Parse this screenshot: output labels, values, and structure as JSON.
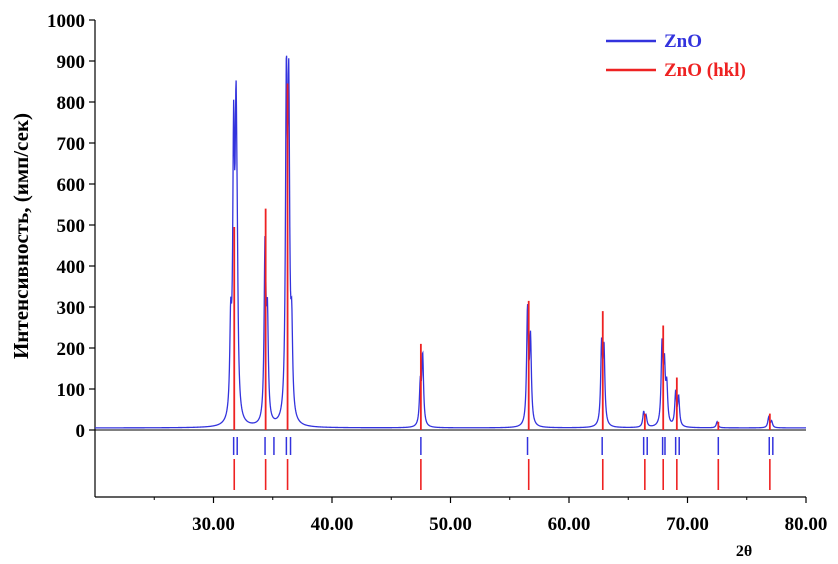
{
  "chart_data": {
    "type": "line",
    "xlabel": "2θ",
    "ylabel": "Интенсивность, (имп/сек)",
    "xlim": [
      20,
      80
    ],
    "ylim": [
      0,
      1000
    ],
    "x_ticks": [
      "30.00",
      "40.00",
      "50.00",
      "60.00",
      "70.00",
      "80.00"
    ],
    "x_tick_values": [
      30,
      40,
      50,
      60,
      70,
      80
    ],
    "y_ticks": [
      "0",
      "100",
      "200",
      "300",
      "400",
      "500",
      "600",
      "700",
      "800",
      "900",
      "1000"
    ],
    "y_tick_values": [
      0,
      100,
      200,
      300,
      400,
      500,
      600,
      700,
      800,
      900,
      1000
    ],
    "grid": false,
    "legend_position": "top-right",
    "colors": {
      "pattern": "#3333dd",
      "reference": "#ee2222"
    },
    "series": [
      {
        "name": "ZnO",
        "kind": "pattern",
        "baseline": 5,
        "peaks": [
          {
            "x": 31.45,
            "y": 210
          },
          {
            "x": 31.7,
            "y": 650
          },
          {
            "x": 31.9,
            "y": 630
          },
          {
            "x": 32.0,
            "y": 230
          },
          {
            "x": 34.35,
            "y": 430
          },
          {
            "x": 34.55,
            "y": 240
          },
          {
            "x": 36.15,
            "y": 785
          },
          {
            "x": 36.35,
            "y": 745
          },
          {
            "x": 36.6,
            "y": 195
          },
          {
            "x": 47.45,
            "y": 95
          },
          {
            "x": 47.65,
            "y": 170
          },
          {
            "x": 56.5,
            "y": 280
          },
          {
            "x": 56.75,
            "y": 205
          },
          {
            "x": 62.75,
            "y": 190
          },
          {
            "x": 62.95,
            "y": 180
          },
          {
            "x": 66.3,
            "y": 35
          },
          {
            "x": 66.5,
            "y": 25
          },
          {
            "x": 67.85,
            "y": 190
          },
          {
            "x": 68.05,
            "y": 135
          },
          {
            "x": 68.25,
            "y": 90
          },
          {
            "x": 69.0,
            "y": 80
          },
          {
            "x": 69.25,
            "y": 70
          },
          {
            "x": 72.5,
            "y": 15
          },
          {
            "x": 76.85,
            "y": 25
          },
          {
            "x": 77.1,
            "y": 15
          }
        ],
        "reference_ticks": [
          31.7,
          32.0,
          34.35,
          35.1,
          36.15,
          36.5,
          47.5,
          56.5,
          62.8,
          66.3,
          66.6,
          67.9,
          68.1,
          69.0,
          69.3,
          72.6,
          76.9,
          77.2
        ]
      },
      {
        "name": "ZnO (hkl)",
        "kind": "sticks",
        "x": [
          31.75,
          34.4,
          36.25,
          47.5,
          56.6,
          62.85,
          66.4,
          67.95,
          69.1,
          72.6,
          76.95
        ],
        "values": [
          495,
          540,
          845,
          210,
          315,
          290,
          40,
          255,
          128,
          20,
          40
        ]
      }
    ]
  }
}
